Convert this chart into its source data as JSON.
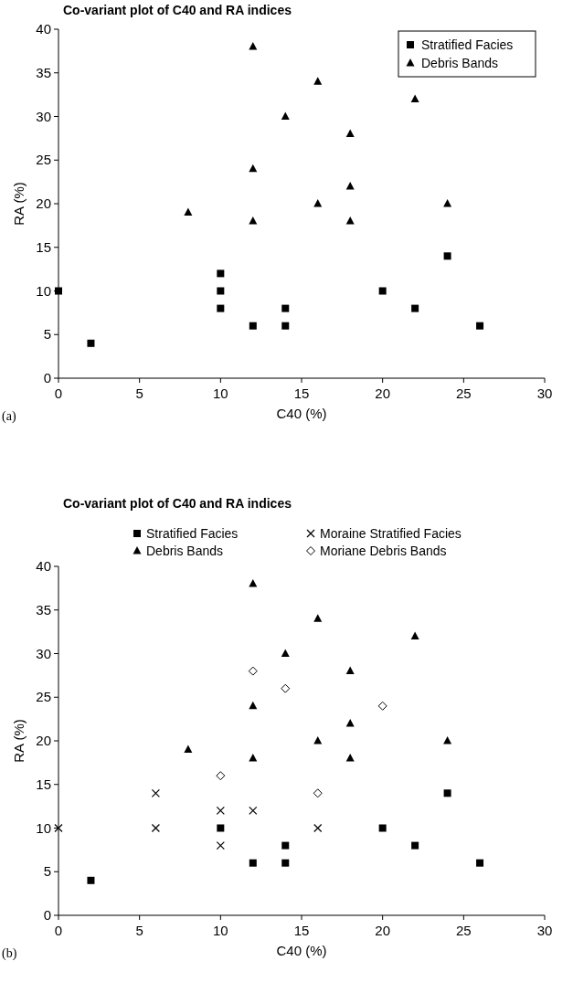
{
  "chart_data": [
    {
      "type": "scatter",
      "title": "Co-variant plot of C40 and RA indices",
      "xlabel": "C40 (%)",
      "ylabel": "RA (%)",
      "annotations": [
        "(a)"
      ],
      "xlim": [
        0,
        30
      ],
      "xticks": [
        0,
        5,
        10,
        15,
        20,
        25,
        30
      ],
      "ylim": [
        0,
        40
      ],
      "yticks": [
        0,
        5,
        10,
        15,
        20,
        25,
        30,
        35,
        40
      ],
      "grid": false,
      "legend": "top right",
      "series": [
        {
          "name": "Stratified Facies",
          "color": "#000000",
          "marker": "square",
          "x": [
            0,
            2,
            10,
            10,
            10,
            12,
            14,
            14,
            20,
            22,
            24,
            26
          ],
          "values": [
            10,
            4,
            12,
            10,
            8,
            6,
            8,
            6,
            10,
            8,
            14,
            6
          ]
        },
        {
          "name": "Debris Bands",
          "color": "#000000",
          "marker": "triangle",
          "x": [
            8,
            12,
            12,
            12,
            14,
            16,
            16,
            18,
            18,
            18,
            22,
            24
          ],
          "values": [
            19,
            38,
            24,
            18,
            30,
            34,
            20,
            28,
            22,
            18,
            32,
            20
          ]
        }
      ]
    },
    {
      "type": "scatter",
      "title": "Co-variant plot of C40 and RA indices",
      "xlabel": "C40 (%)",
      "ylabel": "RA (%)",
      "annotations": [
        "(b)"
      ],
      "xlim": [
        0,
        30
      ],
      "xticks": [
        0,
        5,
        10,
        15,
        20,
        25,
        30
      ],
      "ylim": [
        0,
        40
      ],
      "yticks": [
        0,
        5,
        10,
        15,
        20,
        25,
        30,
        35,
        40
      ],
      "grid": false,
      "legend": "top",
      "series": [
        {
          "name": "Stratified Facies",
          "color": "#000000",
          "marker": "square",
          "x": [
            2,
            10,
            12,
            14,
            14,
            20,
            22,
            24,
            26
          ],
          "values": [
            4,
            10,
            6,
            8,
            6,
            10,
            8,
            14,
            6
          ]
        },
        {
          "name": "Debris Bands",
          "color": "#000000",
          "marker": "triangle",
          "x": [
            8,
            12,
            12,
            12,
            14,
            16,
            16,
            18,
            18,
            18,
            22,
            24
          ],
          "values": [
            19,
            38,
            24,
            18,
            30,
            34,
            20,
            28,
            22,
            18,
            32,
            20
          ]
        },
        {
          "name": "Moraine Stratified Facies",
          "color": "#000000",
          "marker": "cross",
          "x": [
            0,
            6,
            6,
            10,
            10,
            12,
            16
          ],
          "values": [
            10,
            14,
            10,
            12,
            8,
            12,
            10
          ]
        },
        {
          "name": "Moriane Debris Bands",
          "color": "#000000",
          "marker": "diamond",
          "x": [
            10,
            12,
            14,
            16,
            20
          ],
          "values": [
            16,
            28,
            26,
            14,
            24
          ]
        }
      ]
    }
  ]
}
